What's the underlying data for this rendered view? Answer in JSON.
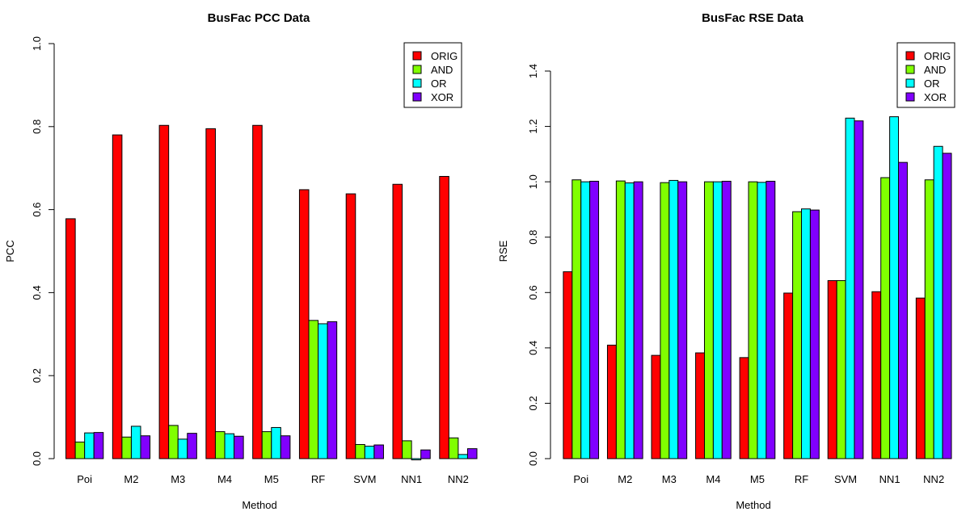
{
  "chart_data": [
    {
      "type": "bar",
      "title": "BusFac PCC Data",
      "xlabel": "Method",
      "ylabel": "PCC",
      "ylim": [
        0,
        1.0
      ],
      "yticks": [
        "0.0",
        "0.2",
        "0.4",
        "0.6",
        "0.8",
        "1.0"
      ],
      "ytick_values": [
        0,
        0.2,
        0.4,
        0.6,
        0.8,
        1.0
      ],
      "categories": [
        "Poi",
        "M2",
        "M3",
        "M4",
        "M5",
        "RF",
        "SVM",
        "NN1",
        "NN2"
      ],
      "legend_position": "top-right",
      "series": [
        {
          "name": "ORIG",
          "color": "#ff0000",
          "values": [
            0.578,
            0.78,
            0.803,
            0.795,
            0.803,
            0.648,
            0.638,
            0.661,
            0.68
          ]
        },
        {
          "name": "AND",
          "color": "#80ff00",
          "values": [
            0.04,
            0.052,
            0.08,
            0.065,
            0.065,
            0.333,
            0.034,
            0.043,
            0.05
          ]
        },
        {
          "name": "OR",
          "color": "#00ffff",
          "values": [
            0.062,
            0.078,
            0.047,
            0.06,
            0.075,
            0.325,
            0.03,
            -0.003,
            0.01
          ]
        },
        {
          "name": "XOR",
          "color": "#8000ff",
          "values": [
            0.063,
            0.055,
            0.061,
            0.054,
            0.055,
            0.33,
            0.033,
            0.021,
            0.024
          ]
        }
      ]
    },
    {
      "type": "bar",
      "title": "BusFac RSE Data",
      "xlabel": "Method",
      "ylabel": "RSE",
      "ylim": [
        0,
        1.4
      ],
      "yticks": [
        "0.0",
        "0.2",
        "0.4",
        "0.6",
        "0.8",
        "1.0",
        "1.2",
        "1.4"
      ],
      "ytick_values": [
        0,
        0.2,
        0.4,
        0.6,
        0.8,
        1.0,
        1.2,
        1.4
      ],
      "categories": [
        "Poi",
        "M2",
        "M3",
        "M4",
        "M5",
        "RF",
        "SVM",
        "NN1",
        "NN2"
      ],
      "legend_position": "top-right",
      "series": [
        {
          "name": "ORIG",
          "color": "#ff0000",
          "values": [
            0.675,
            0.41,
            0.373,
            0.382,
            0.365,
            0.598,
            0.643,
            0.603,
            0.58
          ]
        },
        {
          "name": "AND",
          "color": "#80ff00",
          "values": [
            1.007,
            1.003,
            0.997,
            1.0,
            1.0,
            0.892,
            0.643,
            1.015,
            1.007
          ]
        },
        {
          "name": "OR",
          "color": "#00ffff",
          "values": [
            1.0,
            0.996,
            1.005,
            1.0,
            0.998,
            0.902,
            1.23,
            1.235,
            1.128
          ]
        },
        {
          "name": "XOR",
          "color": "#8000ff",
          "values": [
            1.002,
            1.0,
            1.0,
            1.002,
            1.002,
            0.898,
            1.22,
            1.07,
            1.103
          ]
        }
      ]
    }
  ]
}
